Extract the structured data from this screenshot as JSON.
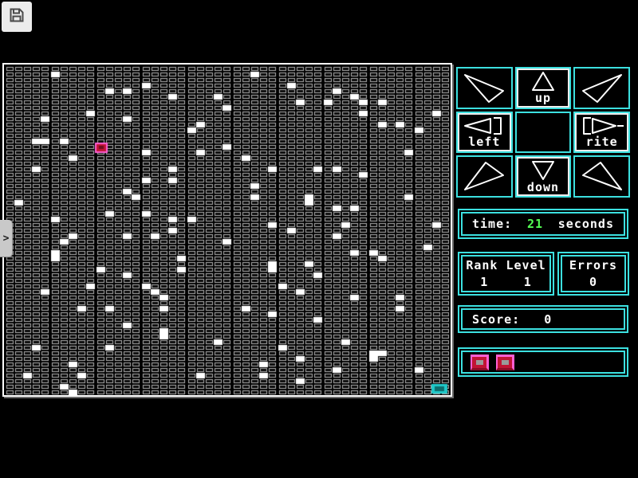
{
  "colors": {
    "accent_cyan": "#3ce0e0",
    "time_green": "#54ff54",
    "cell_gray": "#b2b2b2",
    "cell_inner": "#0a0a0a",
    "dot_white": "#ffffff",
    "cursor_red": "#c01434",
    "cursor_pink": "#ff5fd4",
    "cursor_core": "#6e0d1e",
    "goal_teal": "#1fc9c9",
    "goal_core": "#0d6e6e"
  },
  "toolbar": {
    "save_icon": "floppy-disk"
  },
  "side_tab": {
    "chevron": ">"
  },
  "maze": {
    "cols": 49,
    "rows": 59,
    "cursor": {
      "col": 10,
      "row": 14
    },
    "goal": {
      "col": 47,
      "row": 57
    },
    "dots": [
      [
        5,
        1
      ],
      [
        15,
        3
      ],
      [
        13,
        4
      ],
      [
        11,
        4
      ],
      [
        23,
        5
      ],
      [
        18,
        5
      ],
      [
        24,
        7
      ],
      [
        9,
        8
      ],
      [
        13,
        9
      ],
      [
        4,
        9
      ],
      [
        21,
        10
      ],
      [
        20,
        11
      ],
      [
        4,
        13
      ],
      [
        3,
        13
      ],
      [
        6,
        13
      ],
      [
        24,
        14
      ],
      [
        15,
        15
      ],
      [
        21,
        15
      ],
      [
        7,
        16
      ],
      [
        18,
        18
      ],
      [
        3,
        18
      ],
      [
        18,
        20
      ],
      [
        15,
        20
      ],
      [
        13,
        22
      ],
      [
        14,
        23
      ],
      [
        1,
        24
      ],
      [
        11,
        26
      ],
      [
        15,
        26
      ],
      [
        5,
        27
      ],
      [
        18,
        27
      ],
      [
        20,
        27
      ],
      [
        18,
        29
      ],
      [
        27,
        1
      ],
      [
        31,
        3
      ],
      [
        36,
        4
      ],
      [
        35,
        6
      ],
      [
        38,
        5
      ],
      [
        39,
        6
      ],
      [
        41,
        6
      ],
      [
        32,
        6
      ],
      [
        39,
        8
      ],
      [
        47,
        8
      ],
      [
        43,
        10
      ],
      [
        41,
        10
      ],
      [
        45,
        11
      ],
      [
        44,
        15
      ],
      [
        26,
        16
      ],
      [
        29,
        18
      ],
      [
        36,
        18
      ],
      [
        34,
        18
      ],
      [
        39,
        19
      ],
      [
        27,
        21
      ],
      [
        27,
        23
      ],
      [
        33,
        23
      ],
      [
        33,
        24
      ],
      [
        44,
        23
      ],
      [
        36,
        25
      ],
      [
        38,
        25
      ],
      [
        29,
        28
      ],
      [
        37,
        28
      ],
      [
        47,
        28
      ],
      [
        31,
        29
      ],
      [
        13,
        30
      ],
      [
        16,
        30
      ],
      [
        7,
        30
      ],
      [
        6,
        31
      ],
      [
        24,
        31
      ],
      [
        5,
        33
      ],
      [
        5,
        34
      ],
      [
        19,
        34
      ],
      [
        10,
        36
      ],
      [
        13,
        37
      ],
      [
        19,
        36
      ],
      [
        9,
        39
      ],
      [
        15,
        39
      ],
      [
        16,
        40
      ],
      [
        4,
        40
      ],
      [
        17,
        41
      ],
      [
        8,
        43
      ],
      [
        11,
        43
      ],
      [
        17,
        43
      ],
      [
        13,
        46
      ],
      [
        17,
        47
      ],
      [
        17,
        48
      ],
      [
        23,
        49
      ],
      [
        3,
        50
      ],
      [
        11,
        50
      ],
      [
        7,
        53
      ],
      [
        2,
        55
      ],
      [
        8,
        55
      ],
      [
        21,
        55
      ],
      [
        6,
        57
      ],
      [
        7,
        58
      ],
      [
        36,
        30
      ],
      [
        46,
        32
      ],
      [
        40,
        33
      ],
      [
        38,
        33
      ],
      [
        41,
        34
      ],
      [
        29,
        35
      ],
      [
        29,
        36
      ],
      [
        33,
        35
      ],
      [
        34,
        37
      ],
      [
        30,
        39
      ],
      [
        32,
        40
      ],
      [
        38,
        41
      ],
      [
        43,
        41
      ],
      [
        43,
        43
      ],
      [
        26,
        43
      ],
      [
        29,
        44
      ],
      [
        34,
        45
      ],
      [
        37,
        49
      ],
      [
        30,
        50
      ],
      [
        40,
        51
      ],
      [
        41,
        51
      ],
      [
        40,
        52
      ],
      [
        32,
        52
      ],
      [
        28,
        53
      ],
      [
        28,
        55
      ],
      [
        36,
        54
      ],
      [
        45,
        54
      ],
      [
        32,
        56
      ]
    ]
  },
  "controls": {
    "up_label": "up",
    "left_label": "left",
    "right_label": "rite",
    "down_label": "down"
  },
  "status": {
    "time_label": "time:",
    "time_value": "21",
    "time_unit": "seconds",
    "rank_level_label": "Rank Level",
    "rank_value": "1",
    "level_value": "1",
    "errors_label": "Errors",
    "errors_value": "0",
    "score_label": "Score:",
    "score_value": "0",
    "lives_count": 2
  }
}
